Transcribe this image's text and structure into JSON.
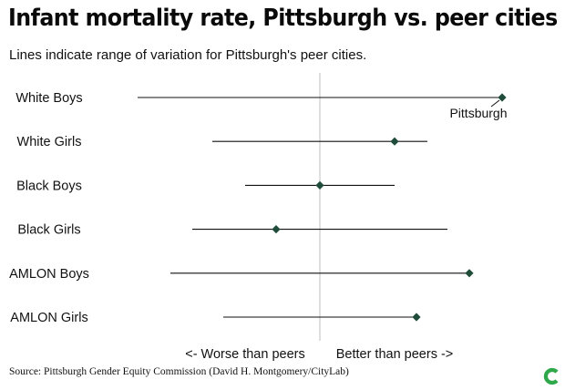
{
  "header": {
    "title": "Infant mortality rate, Pittsburgh vs. peer cities",
    "subtitle": "Lines indicate range of variation for Pittsburgh's peer cities."
  },
  "footer": {
    "source": "Source: Pittsburgh Gender Equity Commission (David H. Montgomery/CityLab)"
  },
  "colors": {
    "marker": "#1f4d3a",
    "range_line": "#111111",
    "center_line": "#bfbfbf",
    "logo": "#2ea84a"
  },
  "chart_data": {
    "type": "dot-range",
    "title": "Infant mortality rate, Pittsburgh vs. peer cities",
    "subtitle": "Lines indicate range of variation for Pittsburgh's peer cities.",
    "x_scale": "relative to peer-city median (0 = median, -1 = worst peer, +1 = best peer)",
    "xlim": [
      -1,
      1
    ],
    "center_value": 0,
    "x_direction_labels": {
      "left": "<- Worse than peers",
      "right": "Better than peers ->"
    },
    "annotation": "Pittsburgh",
    "categories": [
      "White Boys",
      "White Girls",
      "Black Boys",
      "Black Girls",
      "AMLON Boys",
      "AMLON Girls"
    ],
    "peer_range": [
      [
        -1.0,
        1.0
      ],
      [
        -0.59,
        0.59
      ],
      [
        -0.41,
        0.41
      ],
      [
        -0.7,
        0.7
      ],
      [
        -0.82,
        0.82
      ],
      [
        -0.53,
        0.53
      ]
    ],
    "pittsburgh": [
      1.0,
      0.41,
      0.0,
      -0.24,
      0.82,
      0.53
    ],
    "grid": false,
    "legend": "none"
  }
}
